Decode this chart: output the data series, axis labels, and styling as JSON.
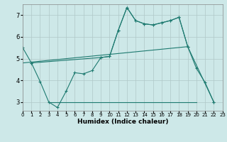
{
  "background_color": "#cde8e8",
  "grid_color": "#b0c8c8",
  "line_color": "#1e7a70",
  "xlabel": "Humidex (Indice chaleur)",
  "xlim": [
    0,
    23
  ],
  "ylim": [
    2.6,
    7.5
  ],
  "yticks": [
    3,
    4,
    5,
    6,
    7
  ],
  "xticks": [
    0,
    1,
    2,
    3,
    4,
    5,
    6,
    7,
    8,
    9,
    10,
    11,
    12,
    13,
    14,
    15,
    16,
    17,
    18,
    19,
    20,
    21,
    22,
    23
  ],
  "series1_x": [
    0,
    1,
    2,
    3,
    4,
    5,
    6,
    7,
    8,
    9,
    10,
    11,
    12,
    13,
    14,
    15,
    16,
    17,
    18,
    19,
    20,
    21,
    22
  ],
  "series1_y": [
    5.5,
    4.8,
    3.95,
    3.0,
    2.75,
    3.5,
    4.35,
    4.3,
    4.45,
    5.05,
    5.1,
    6.3,
    7.35,
    6.75,
    6.6,
    6.55,
    6.65,
    6.75,
    6.9,
    5.55,
    4.55,
    3.9,
    3.0
  ],
  "series2_x": [
    1,
    9,
    10,
    11,
    12,
    13,
    14,
    15,
    16,
    17,
    18,
    19,
    22
  ],
  "series2_y": [
    4.8,
    5.05,
    5.1,
    6.3,
    7.35,
    6.75,
    6.6,
    6.55,
    6.65,
    6.75,
    6.9,
    5.55,
    3.0
  ],
  "series3_x": [
    3,
    20
  ],
  "series3_y": [
    3.0,
    3.0
  ],
  "series4_x": [
    0,
    19
  ],
  "series4_y": [
    4.8,
    5.55
  ]
}
